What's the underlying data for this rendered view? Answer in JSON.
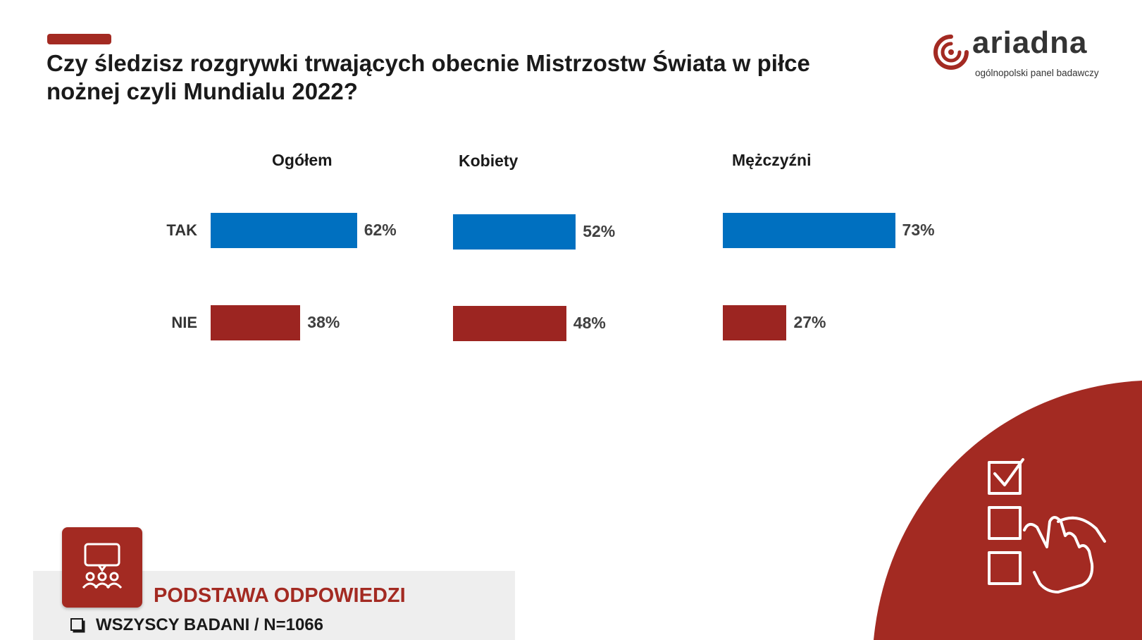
{
  "header": {
    "title": "Czy śledzisz rozgrywki trwających obecnie Mistrzostw Świata w piłce nożnej czyli Mundialu 2022?"
  },
  "logo": {
    "name": "ariadna",
    "tagline": "ogólnopolski panel badawczy",
    "icon": "ariadna-spiral-icon"
  },
  "colors": {
    "accent": "#a32a22",
    "yes": "#0070c0",
    "no": "#9c2521",
    "decor": "#a32a22"
  },
  "chart_data": {
    "type": "bar",
    "orientation": "horizontal",
    "categories": [
      "TAK",
      "NIE"
    ],
    "groups": [
      {
        "name": "Ogółem",
        "values": [
          62,
          38
        ],
        "labels": [
          "62%",
          "38%"
        ]
      },
      {
        "name": "Kobiety",
        "values": [
          52,
          48
        ],
        "labels": [
          "52%",
          "48%"
        ]
      },
      {
        "name": "Mężczyźni",
        "values": [
          73,
          27
        ],
        "labels": [
          "73%",
          "27%"
        ]
      }
    ],
    "unit": "%",
    "xlim": [
      0,
      100
    ],
    "grid": false,
    "legend": "none"
  },
  "base": {
    "heading": "PODSTAWA ODPOWIEDZI",
    "item": "WSZYSCY BADANI / N=1066",
    "icon": "survey-group-icon",
    "item_icon": "checkbox-icon"
  },
  "decoration": {
    "icon": "checklist-hand-icon"
  }
}
